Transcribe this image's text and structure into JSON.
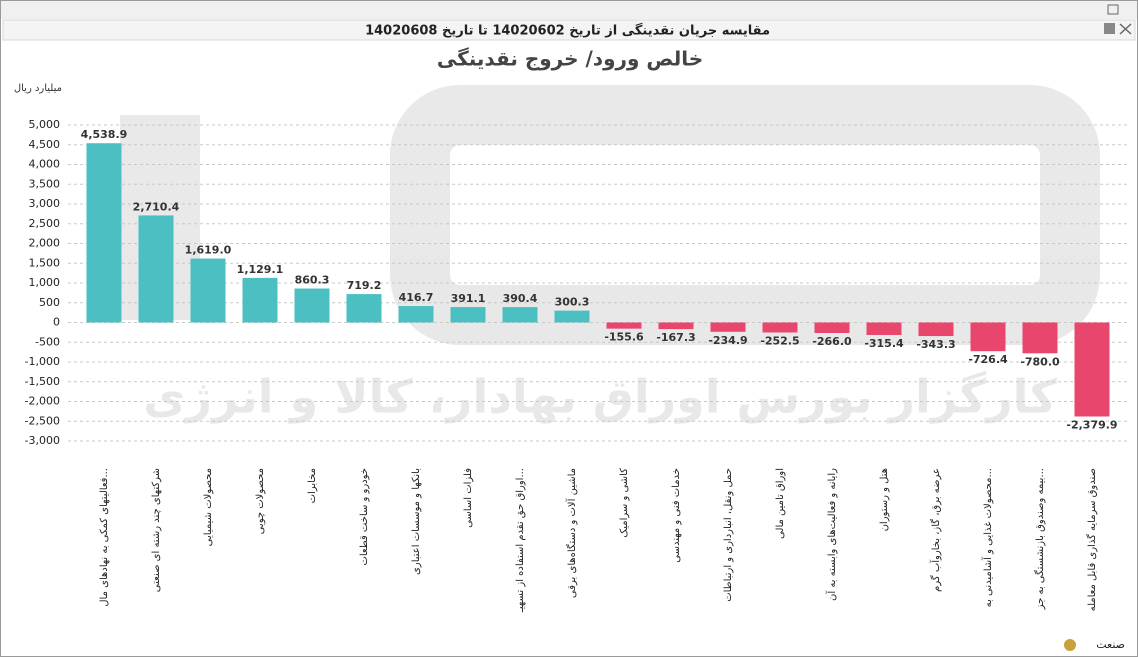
{
  "window_title": "مقایسه جریان نقدینگی از تاریخ 14020602 تا تاریخ 14020608",
  "chart_data": {
    "type": "bar",
    "title": "خالص ورود/ خروج نقدینگی",
    "y_unit": "میلیارد ریال",
    "x_label": "صنعت",
    "watermark": "کارگزار بورس اوراق بهادار، کالا و انرژی",
    "categories": [
      "فعالیتهای کمکی به نهادهای مال...",
      "شرکتهای چند رشته ای صنعتی",
      "محصولات شیمیایی",
      "محصولات چوبی",
      "مخابرات",
      "خودرو و ساخت قطعات",
      "بانکها و موسسات اعتباری",
      "فلزات اساسی",
      "اوراق حق تقدم استفاده از تسهیـ...",
      "ماشین آلات و دستگاه‌های برقی",
      "کاشی و سرامیک",
      "خدمات فنی و مهندسی",
      "حمل ونقل، انبارداری و ارتباطات",
      "اوراق تامین مالی",
      "رایانه و فعالیت‌های وابسته به آن",
      "هتل و رستوران",
      "عرضه برق، گاز، بخاروآب گرم",
      "محصولات غذایی و آشامیدنی به...",
      "بیمه وصندوق بازنشستگی به جز...",
      "صندوق سرمایه گذاری قابل معامله"
    ],
    "values": [
      4538.9,
      2710.4,
      1619.0,
      1129.1,
      860.3,
      719.2,
      416.7,
      391.1,
      390.4,
      300.3,
      -155.6,
      -167.3,
      -234.9,
      -252.5,
      -266.0,
      -315.4,
      -343.3,
      -726.4,
      -780.0,
      -2379.9
    ],
    "value_labels": [
      "4,538.9",
      "2,710.4",
      "1,619.0",
      "1,129.1",
      "860.3",
      "719.2",
      "416.7",
      "391.1",
      "390.4",
      "300.3",
      "-155.6",
      "-167.3",
      "-234.9",
      "-252.5",
      "-266.0",
      "-315.4",
      "-343.3",
      "-726.4",
      "-780.0",
      "-2,379.9"
    ],
    "positive_color": "#4cbfc3",
    "negative_color": "#e8466c",
    "ylim": [
      -3000,
      5000
    ],
    "yticks": [
      {
        "value": 5000,
        "label": "5,000"
      },
      {
        "value": 4500,
        "label": "4,500"
      },
      {
        "value": 4000,
        "label": "4,000"
      },
      {
        "value": 3500,
        "label": "3,500"
      },
      {
        "value": 3000,
        "label": "3,000"
      },
      {
        "value": 2500,
        "label": "2,500"
      },
      {
        "value": 2000,
        "label": "2,000"
      },
      {
        "value": 1500,
        "label": "1,500"
      },
      {
        "value": 1000,
        "label": "1,000"
      },
      500,
      0,
      -500,
      {
        "value": -1000,
        "label": "-1,000"
      },
      {
        "value": -1500,
        "label": "-1,500"
      },
      {
        "value": -2000,
        "label": "-2,000"
      },
      {
        "value": -2500,
        "label": "-2,500"
      },
      {
        "value": -3000,
        "label": "-3,000"
      }
    ],
    "grid": true
  }
}
